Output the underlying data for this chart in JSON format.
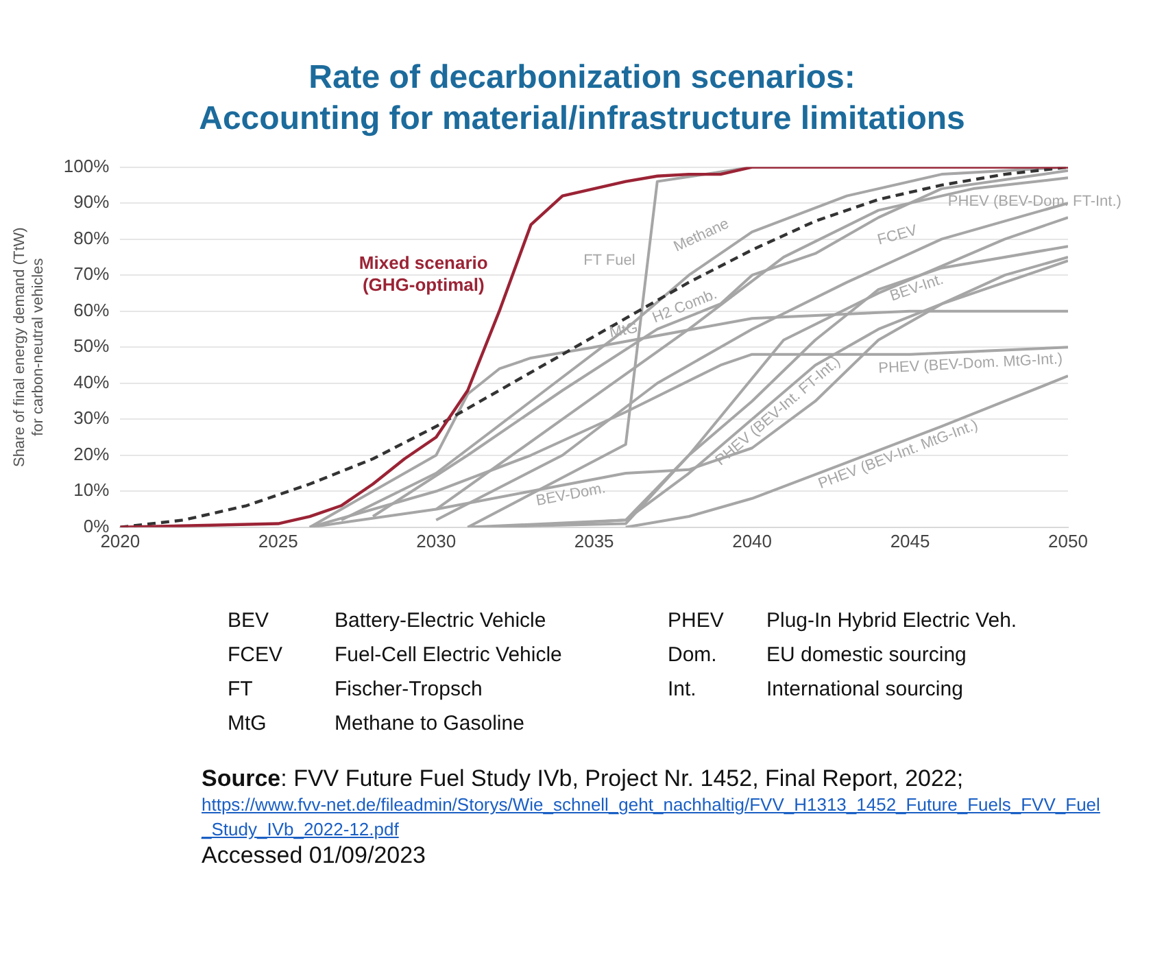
{
  "chart_data": {
    "type": "line",
    "title": "Rate of decarbonization scenarios:",
    "subtitle": "Accounting for material/infrastructure limitations",
    "ylabel": "Share of final energy demand (TtW)\nfor carbon-neutral vehicles",
    "xlim": [
      2020,
      2050
    ],
    "xticks": [
      2020,
      2025,
      2030,
      2035,
      2040,
      2045,
      2050
    ],
    "ylim": [
      0,
      100
    ],
    "yticks": [
      {
        "value": 0,
        "label": "0%"
      },
      {
        "value": 10,
        "label": "10%"
      },
      {
        "value": 20,
        "label": "20%"
      },
      {
        "value": 30,
        "label": "30%"
      },
      {
        "value": 40,
        "label": "40%"
      },
      {
        "value": 50,
        "label": "50%"
      },
      {
        "value": 60,
        "label": "60%"
      },
      {
        "value": 70,
        "label": "70%"
      },
      {
        "value": 80,
        "label": "80%"
      },
      {
        "value": 90,
        "label": "90%"
      },
      {
        "value": 100,
        "label": "100%"
      }
    ],
    "grid": "y",
    "legend": false,
    "marker": "none",
    "series": [
      {
        "name": "Mixed scenario (GHG-optimal)",
        "color": "#9b2335",
        "x": [
          2020,
          2025,
          2026,
          2027,
          2028,
          2029,
          2030,
          2031,
          2032,
          2033,
          2034,
          2035,
          2036,
          2037,
          2038,
          2039,
          2040,
          2050
        ],
        "values": [
          0,
          1,
          3,
          6,
          12,
          19,
          25,
          38,
          60,
          84,
          92,
          94,
          96,
          97.5,
          98,
          98,
          100,
          100
        ]
      },
      {
        "color": "#333333",
        "line_style": "dashed",
        "x": [
          2020,
          2022,
          2024,
          2025,
          2026,
          2028,
          2030,
          2032,
          2034,
          2036,
          2038,
          2040,
          2042,
          2044,
          2046,
          2048,
          2050
        ],
        "values": [
          0,
          2,
          6,
          9,
          12,
          19,
          28,
          38,
          48,
          58,
          68,
          77,
          85,
          91,
          95,
          98,
          100
        ]
      },
      {
        "name": "MtG",
        "color": "#a6a6a6",
        "x": [
          2026,
          2030,
          2031,
          2032,
          2033,
          2035,
          2040,
          2045,
          2050
        ],
        "values": [
          0,
          20,
          37,
          44,
          47,
          50,
          58,
          60,
          60
        ]
      },
      {
        "name": "FT Fuel",
        "color": "#a6a6a6",
        "x": [
          2031,
          2036,
          2037,
          2040,
          2050
        ],
        "values": [
          0,
          23,
          96,
          100,
          100
        ]
      },
      {
        "name": "Methane",
        "color": "#a6a6a6",
        "x": [
          2027,
          2030,
          2033,
          2036,
          2038,
          2040,
          2043,
          2046,
          2050
        ],
        "values": [
          2,
          15,
          35,
          55,
          70,
          82,
          92,
          98,
          100
        ]
      },
      {
        "name": "H2 Comb.",
        "color": "#a6a6a6",
        "x": [
          2028,
          2031,
          2034,
          2037,
          2039,
          2040,
          2042,
          2044,
          2046,
          2050
        ],
        "values": [
          3,
          20,
          38,
          55,
          62,
          70,
          76,
          86,
          94,
          99
        ]
      },
      {
        "name": "FCEV",
        "color": "#a6a6a6",
        "x": [
          2030,
          2034,
          2037,
          2040,
          2043,
          2046,
          2048,
          2050
        ],
        "values": [
          2,
          20,
          40,
          55,
          68,
          80,
          85,
          90
        ]
      },
      {
        "name": "PHEV (BEV-Dom. FT-Int.)",
        "color": "#a6a6a6",
        "x": [
          2030,
          2034,
          2038,
          2041,
          2044,
          2047,
          2050
        ],
        "values": [
          5,
          30,
          55,
          75,
          88,
          94,
          97
        ]
      },
      {
        "name": "BEV-Int.",
        "color": "#a6a6a6",
        "x": [
          2031,
          2036,
          2038,
          2040,
          2042,
          2044,
          2046,
          2050
        ],
        "values": [
          0,
          2,
          20,
          35,
          52,
          66,
          72,
          78
        ]
      },
      {
        "name": "PHEV (BEV-Int. FT-Int.)",
        "color": "#a6a6a6",
        "x": [
          2032,
          2036,
          2038,
          2040,
          2042,
          2044,
          2046,
          2050
        ],
        "values": [
          0,
          2,
          15,
          30,
          45,
          55,
          62,
          74
        ]
      },
      {
        "name": "PHEV (BEV-Dom. MtG-Int.)",
        "color": "#a6a6a6",
        "x": [
          2026,
          2030,
          2033,
          2036,
          2039,
          2040,
          2045,
          2050
        ],
        "values": [
          0,
          10,
          20,
          32,
          45,
          48,
          48,
          50
        ]
      },
      {
        "name": "PHEV (BEV-Int. MtG-Int.)",
        "color": "#a6a6a6",
        "x": [
          2036,
          2038,
          2040,
          2043,
          2046,
          2048,
          2050
        ],
        "values": [
          0,
          3,
          8,
          18,
          28,
          35,
          42
        ]
      },
      {
        "name": "BEV-Dom.",
        "color": "#a6a6a6",
        "x": [
          2026,
          2030,
          2033,
          2036,
          2038,
          2040,
          2042,
          2044,
          2046,
          2048,
          2050
        ],
        "values": [
          0,
          5,
          10,
          15,
          16,
          22,
          35,
          52,
          62,
          70,
          75
        ]
      },
      {
        "color": "#a6a6a6",
        "x": [
          2031,
          2036,
          2038,
          2041,
          2044,
          2048,
          2050
        ],
        "values": [
          0,
          1,
          20,
          52,
          65,
          80,
          86
        ]
      }
    ],
    "annotations": [
      "BEV",
      "Battery-Electric Vehicle",
      "PHEV",
      "Plug-In Hybrid Electric Veh.",
      "FCEV",
      "Fuel-Cell Electric Vehicle",
      "Dom.",
      "EU domestic sourcing",
      "FT",
      "Fischer-Tropsch",
      "Int.",
      "International sourcing",
      "MtG",
      "Methane to Gasoline",
      "Source: FVV Future Fuel Study IVb, Project Nr. 1452, Final Report, 2022;",
      "https://www.fvv-net.de/fileadmin/Storys/Wie_schnell_geht_nachhaltig/FVV_H1313_1452_Future_Fuels_FVV_Fuel_Study_IVb_2022-12.pdf",
      "Accessed 01/09/2023"
    ]
  }
}
